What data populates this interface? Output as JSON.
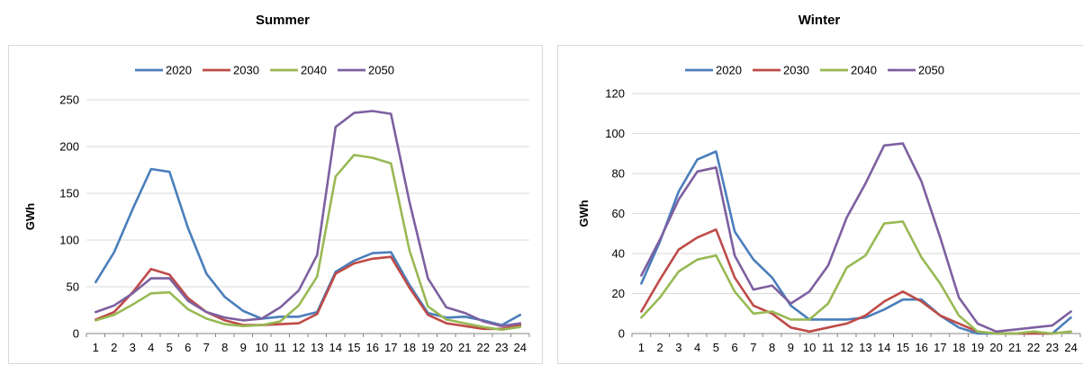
{
  "chart_data": [
    {
      "type": "line",
      "title": "Summer",
      "xlabel": "",
      "ylabel": "GWh",
      "ylim": [
        0,
        250
      ],
      "yticks": [
        "0",
        "50",
        "100",
        "150",
        "200",
        "250"
      ],
      "grid": "horizontal",
      "legend": "top",
      "x": [
        "1",
        "2",
        "3",
        "4",
        "5",
        "6",
        "7",
        "8",
        "9",
        "10",
        "11",
        "12",
        "13",
        "14",
        "15",
        "16",
        "17",
        "18",
        "19",
        "20",
        "21",
        "22",
        "23",
        "24"
      ],
      "series": [
        {
          "name": "2020",
          "color": "#4a7ebb",
          "values": [
            55,
            87,
            133,
            176,
            173,
            113,
            64,
            39,
            24,
            16,
            18,
            18,
            23,
            66,
            78,
            86,
            87,
            52,
            22,
            17,
            18,
            14,
            9,
            20
          ]
        },
        {
          "name": "2030",
          "color": "#be4b48",
          "values": [
            15,
            23,
            44,
            69,
            63,
            38,
            23,
            14,
            9,
            9,
            10,
            11,
            21,
            64,
            75,
            80,
            82,
            49,
            20,
            11,
            8,
            5,
            5,
            9
          ]
        },
        {
          "name": "2040",
          "color": "#98b954",
          "values": [
            14,
            20,
            31,
            43,
            44,
            26,
            16,
            10,
            8,
            9,
            13,
            30,
            61,
            168,
            191,
            188,
            182,
            89,
            29,
            15,
            11,
            7,
            4,
            7
          ]
        },
        {
          "name": "2050",
          "color": "#7d60a0",
          "values": [
            23,
            30,
            43,
            59,
            59,
            35,
            23,
            17,
            14,
            16,
            28,
            46,
            84,
            221,
            236,
            238,
            235,
            141,
            59,
            28,
            22,
            13,
            8,
            11
          ]
        }
      ]
    },
    {
      "type": "line",
      "title": "Winter",
      "xlabel": "",
      "ylabel": "GWh",
      "ylim": [
        0,
        120
      ],
      "yticks": [
        "0",
        "20",
        "40",
        "60",
        "80",
        "100",
        "120"
      ],
      "grid": "horizontal",
      "legend": "top",
      "x": [
        "1",
        "2",
        "3",
        "4",
        "5",
        "6",
        "7",
        "8",
        "9",
        "10",
        "11",
        "12",
        "13",
        "14",
        "15",
        "16",
        "17",
        "18",
        "19",
        "20",
        "21",
        "22",
        "23",
        "24"
      ],
      "series": [
        {
          "name": "2020",
          "color": "#4a7ebb",
          "values": [
            25,
            46,
            71,
            87,
            91,
            51,
            37,
            28,
            14,
            7,
            7,
            7,
            8,
            12,
            17,
            17,
            9,
            3,
            0,
            0,
            0,
            0,
            0,
            8
          ]
        },
        {
          "name": "2030",
          "color": "#be4b48",
          "values": [
            11,
            27,
            42,
            48,
            52,
            28,
            14,
            10,
            3,
            1,
            3,
            5,
            9,
            16,
            21,
            16,
            9,
            5,
            1,
            0,
            0,
            0,
            0,
            1
          ]
        },
        {
          "name": "2040",
          "color": "#98b954",
          "values": [
            8,
            18,
            31,
            37,
            39,
            21,
            10,
            11,
            7,
            7,
            15,
            33,
            39,
            55,
            56,
            38,
            25,
            9,
            1,
            0,
            0,
            1,
            0,
            1
          ]
        },
        {
          "name": "2050",
          "color": "#7d60a0",
          "values": [
            29,
            47,
            67,
            81,
            83,
            39,
            22,
            24,
            15,
            21,
            34,
            58,
            75,
            94,
            95,
            76,
            48,
            18,
            5,
            1,
            2,
            3,
            4,
            11
          ]
        }
      ]
    }
  ]
}
